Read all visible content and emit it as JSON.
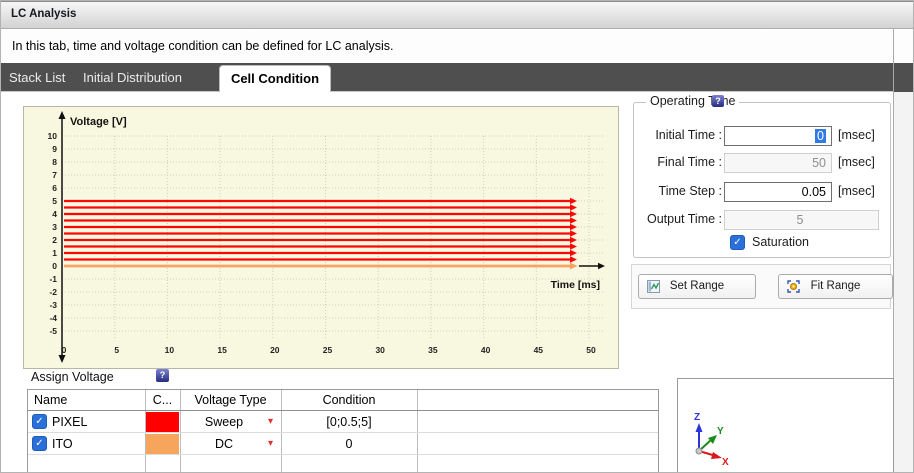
{
  "window": {
    "title": "LC Analysis",
    "description": "In this tab, time and voltage condition can be defined for LC analysis."
  },
  "tabs": [
    {
      "label": "Stack List",
      "active": false
    },
    {
      "label": "Initial Distribution",
      "active": false
    },
    {
      "label": "Cell Condition",
      "active": true
    }
  ],
  "chart_data": {
    "type": "line",
    "title": "",
    "xlabel": "Time [ms]",
    "ylabel": "Voltage [V]",
    "xlim": [
      0,
      50
    ],
    "ylim": [
      -5,
      10
    ],
    "x_ticks": [
      0,
      5,
      10,
      15,
      20,
      25,
      30,
      35,
      40,
      45,
      50
    ],
    "y_ticks": [
      10,
      9,
      8,
      7,
      6,
      5,
      4,
      3,
      2,
      1,
      0,
      -1,
      -2,
      -3,
      -4,
      -5
    ],
    "grid": true,
    "legend": "none",
    "series": [
      {
        "name": "PIXEL",
        "voltage_type": "Sweep",
        "condition": "[0;0.5;5]",
        "color": "#fb0707",
        "values": [
          0,
          0.5,
          1,
          1.5,
          2,
          2.5,
          3,
          3.5,
          4,
          4.5,
          5
        ],
        "x_start": 0,
        "x_end": 50,
        "arrow": true
      },
      {
        "name": "ITO",
        "voltage_type": "DC",
        "condition": "0",
        "color": "#f7a55c",
        "values": [
          0
        ],
        "x_start": 0,
        "x_end": 50,
        "arrow": true
      }
    ]
  },
  "operating_time": {
    "title": "Operating Time",
    "fields": [
      {
        "label": "Initial Time :",
        "value": "0",
        "unit": "[msec]",
        "state": "selected"
      },
      {
        "label": "Final Time :",
        "value": "50",
        "unit": "[msec]",
        "state": "disabled"
      },
      {
        "label": "Time Step :",
        "value": "0.05",
        "unit": "[msec]",
        "state": "editable"
      },
      {
        "label": "Output Time :",
        "value": "5",
        "unit": "",
        "state": "disabled"
      }
    ],
    "saturation": {
      "label": "Saturation",
      "checked": true
    }
  },
  "range_buttons": {
    "set": "Set Range",
    "fit": "Fit Range"
  },
  "assign_voltage": {
    "title": "Assign Voltage",
    "columns": [
      "Name",
      "C...",
      "Voltage Type",
      "Condition"
    ],
    "rows": [
      {
        "checked": true,
        "name": "PIXEL",
        "color": "#ff0000",
        "voltage_type": "Sweep",
        "condition": "[0;0.5;5]"
      },
      {
        "checked": true,
        "name": "ITO",
        "color": "#f7a45c",
        "voltage_type": "DC",
        "condition": "0"
      }
    ]
  },
  "viewport_axes": {
    "z": "Z",
    "y": "Y",
    "x": "X",
    "z_color": "#2b36d9",
    "y_color": "#1a8c1a",
    "x_color": "#d91a1a"
  },
  "icons": {
    "check": "✓",
    "dropdown": "▾",
    "help": "?"
  }
}
